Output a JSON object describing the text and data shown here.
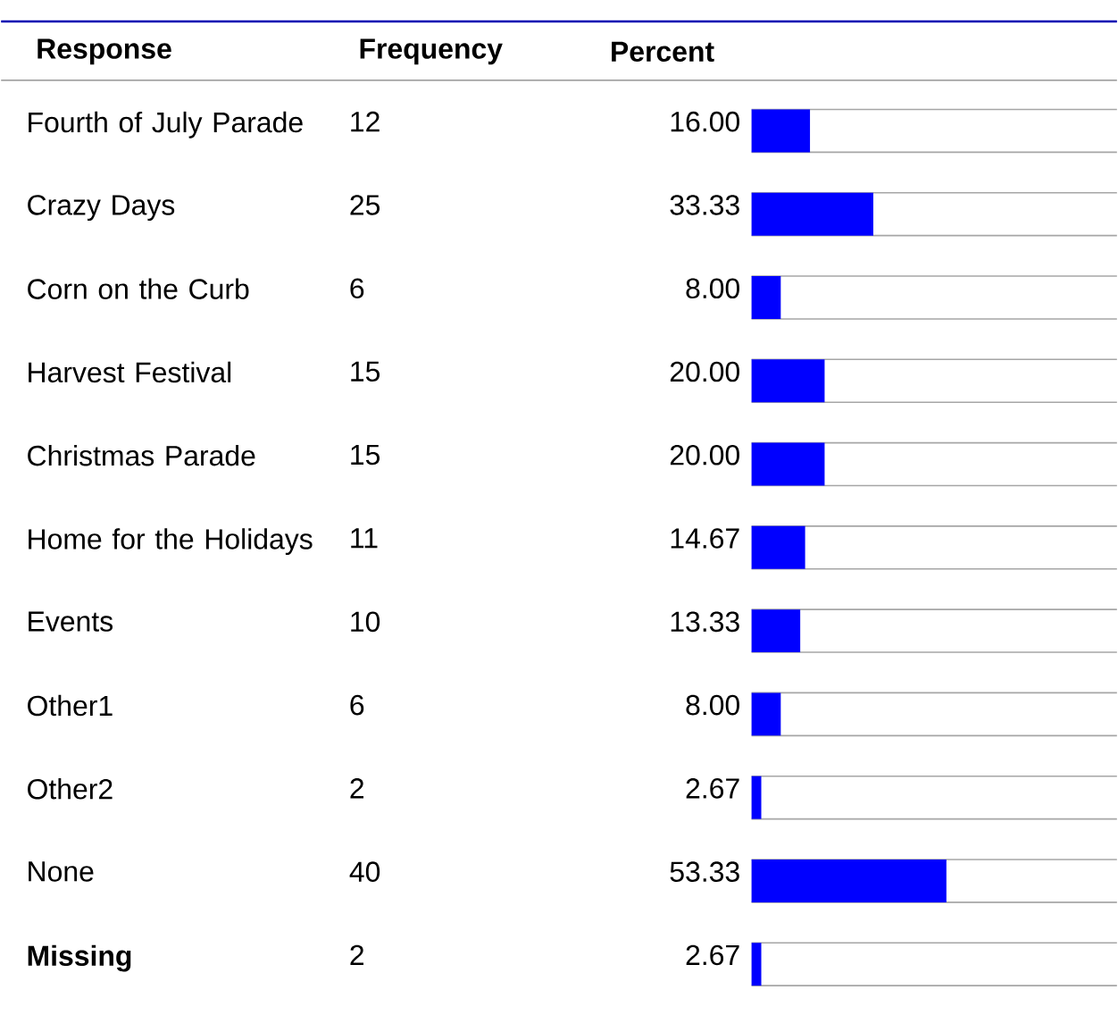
{
  "chart_data": {
    "type": "bar",
    "orientation": "horizontal",
    "ylabel": "Response",
    "xlabel": "Percent",
    "categories": [
      "Fourth of July Parade",
      "Crazy Days",
      "Corn on the Curb",
      "Harvest Festival",
      "Christmas Parade",
      "Home for the Holidays",
      "Events",
      "Other1",
      "Other2",
      "None",
      "**Missing**"
    ],
    "values": [
      16.0,
      33.33,
      8.0,
      20.0,
      20.0,
      14.67,
      13.33,
      8.0,
      2.67,
      53.33,
      2.67
    ],
    "value_labels": [
      "16.00",
      "33.33",
      "8.00",
      "20.00",
      "20.00",
      "14.67",
      "13.33",
      "8.00",
      "2.67",
      "53.33",
      "2.67"
    ],
    "color": "#0000ff",
    "xlim": [
      0,
      100
    ],
    "annotations": [
      "Frequency",
      "12",
      "25",
      "6",
      "15",
      "15",
      "11",
      "10",
      "6",
      "2",
      "40",
      "2"
    ]
  }
}
